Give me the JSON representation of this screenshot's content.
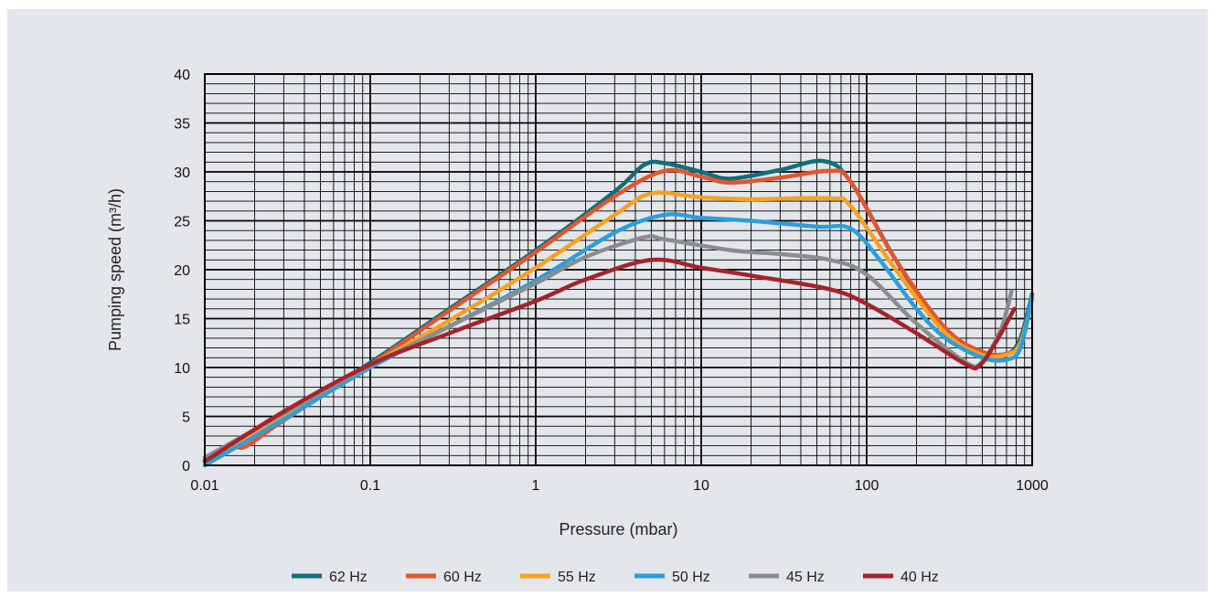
{
  "chart_data": {
    "type": "line",
    "title": "",
    "xlabel": "Pressure (mbar)",
    "ylabel": "Pumping speed (m³/h)",
    "x_scale": "log",
    "xlim": [
      0.01,
      1000
    ],
    "ylim": [
      0,
      40
    ],
    "x_ticks": [
      "0.01",
      "0.1",
      "1",
      "10",
      "100",
      "1000"
    ],
    "y_ticks": [
      "0",
      "5",
      "10",
      "15",
      "20",
      "25",
      "30",
      "35",
      "40"
    ],
    "grid": true,
    "legend_position": "bottom",
    "series": [
      {
        "name": "62 Hz",
        "color": "#0f6f7a",
        "points": [
          [
            0.01,
            0.5
          ],
          [
            0.03,
            5
          ],
          [
            0.1,
            10.5
          ],
          [
            0.3,
            16
          ],
          [
            1,
            22
          ],
          [
            3,
            28
          ],
          [
            4.5,
            30.7
          ],
          [
            6,
            30.9
          ],
          [
            10,
            30
          ],
          [
            15,
            29.3
          ],
          [
            30,
            30.2
          ],
          [
            55,
            31.1
          ],
          [
            80,
            29
          ],
          [
            150,
            21
          ],
          [
            300,
            13.5
          ],
          [
            500,
            11.2
          ],
          [
            700,
            11.3
          ],
          [
            850,
            13
          ],
          [
            1000,
            17.5
          ]
        ]
      },
      {
        "name": "60 Hz",
        "color": "#e2562f",
        "points": [
          [
            0.01,
            0.8
          ],
          [
            0.015,
            1.8
          ],
          [
            0.018,
            2
          ],
          [
            0.03,
            4.6
          ],
          [
            0.1,
            10.3
          ],
          [
            0.3,
            15.8
          ],
          [
            1,
            21.8
          ],
          [
            3,
            27.5
          ],
          [
            6,
            30.1
          ],
          [
            10,
            29.5
          ],
          [
            15,
            28.9
          ],
          [
            30,
            29.4
          ],
          [
            60,
            30.1
          ],
          [
            80,
            29
          ],
          [
            150,
            21
          ],
          [
            300,
            14
          ],
          [
            500,
            11.6
          ],
          [
            700,
            11.4
          ],
          [
            850,
            12.5
          ],
          [
            1000,
            17
          ]
        ]
      },
      {
        "name": "55 Hz",
        "color": "#f7a123",
        "points": [
          [
            0.01,
            0.3
          ],
          [
            0.03,
            4.9
          ],
          [
            0.1,
            10.2
          ],
          [
            0.3,
            14.8
          ],
          [
            1,
            20.2
          ],
          [
            3,
            25.6
          ],
          [
            5,
            27.8
          ],
          [
            10,
            27.4
          ],
          [
            20,
            27.2
          ],
          [
            60,
            27.3
          ],
          [
            80,
            26.5
          ],
          [
            150,
            20
          ],
          [
            300,
            13.5
          ],
          [
            500,
            11.3
          ],
          [
            700,
            11.3
          ],
          [
            850,
            12.5
          ],
          [
            1000,
            17
          ]
        ]
      },
      {
        "name": "50 Hz",
        "color": "#2b9fdb",
        "points": [
          [
            0.01,
            0
          ],
          [
            0.03,
            4.7
          ],
          [
            0.1,
            10
          ],
          [
            0.3,
            14.2
          ],
          [
            1,
            18.9
          ],
          [
            3,
            23.8
          ],
          [
            6,
            25.6
          ],
          [
            10,
            25.3
          ],
          [
            20,
            25
          ],
          [
            50,
            24.4
          ],
          [
            80,
            24.2
          ],
          [
            120,
            21
          ],
          [
            200,
            16
          ],
          [
            300,
            13
          ],
          [
            500,
            11
          ],
          [
            700,
            10.8
          ],
          [
            850,
            12
          ],
          [
            1000,
            17.3
          ]
        ]
      },
      {
        "name": "45 Hz",
        "color": "#8c8c8c",
        "points": [
          [
            0.01,
            0.8
          ],
          [
            0.03,
            5.3
          ],
          [
            0.1,
            10.2
          ],
          [
            0.3,
            14.2
          ],
          [
            1,
            18.6
          ],
          [
            2,
            21.3
          ],
          [
            4.5,
            23.3
          ],
          [
            6,
            23.1
          ],
          [
            15,
            22
          ],
          [
            30,
            21.6
          ],
          [
            60,
            21
          ],
          [
            100,
            19.5
          ],
          [
            200,
            14.5
          ],
          [
            400,
            10.5
          ],
          [
            500,
            10.6
          ],
          [
            650,
            14
          ],
          [
            750,
            17.8
          ]
        ]
      },
      {
        "name": "40 Hz",
        "color": "#a5232a",
        "points": [
          [
            0.01,
            0.4
          ],
          [
            0.03,
            5.5
          ],
          [
            0.1,
            10.3
          ],
          [
            0.3,
            13.5
          ],
          [
            1,
            16.8
          ],
          [
            2,
            19
          ],
          [
            5,
            21
          ],
          [
            10,
            20.2
          ],
          [
            20,
            19.4
          ],
          [
            60,
            18
          ],
          [
            100,
            16.5
          ],
          [
            200,
            13.5
          ],
          [
            400,
            10.3
          ],
          [
            480,
            10.2
          ],
          [
            600,
            12.5
          ],
          [
            780,
            16
          ]
        ]
      }
    ]
  }
}
